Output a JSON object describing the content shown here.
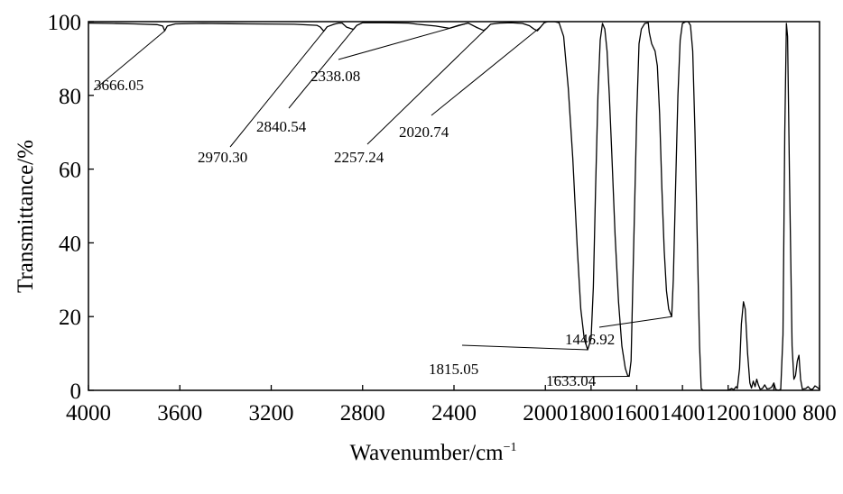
{
  "chart_data": {
    "type": "line",
    "xlabel": "Wavenumber/cm",
    "xlabel_sup": "−1",
    "ylabel": "Transmittance/%",
    "xlim": [
      4000,
      800
    ],
    "ylim": [
      0,
      100
    ],
    "x_reversed": true,
    "grid": false,
    "legend": "none",
    "x_ticks": [
      {
        "value": 4000,
        "label": "4000"
      },
      {
        "value": 3600,
        "label": "3600"
      },
      {
        "value": 3200,
        "label": "3200"
      },
      {
        "value": 2800,
        "label": "2800"
      },
      {
        "value": 2400,
        "label": "2400"
      },
      {
        "value": 2000,
        "label": "2000"
      },
      {
        "value": 1800,
        "label": "1800"
      },
      {
        "value": 1600,
        "label": "1600"
      },
      {
        "value": 1400,
        "label": "1400"
      },
      {
        "value": 1200,
        "label": "1200"
      },
      {
        "value": 1000,
        "label": "1000"
      },
      {
        "value": 800,
        "label": "800"
      }
    ],
    "y_ticks": [
      {
        "value": 0,
        "label": "0"
      },
      {
        "value": 20,
        "label": "20"
      },
      {
        "value": 40,
        "label": "40"
      },
      {
        "value": 60,
        "label": "60"
      },
      {
        "value": 80,
        "label": "80"
      },
      {
        "value": 100,
        "label": "100"
      }
    ],
    "series": [
      {
        "color": "#000000",
        "points": [
          [
            4000,
            99.6
          ],
          [
            3900,
            99.5
          ],
          [
            3800,
            99.4
          ],
          [
            3700,
            99.2
          ],
          [
            3675,
            98.8
          ],
          [
            3666,
            97.5
          ],
          [
            3655,
            98.8
          ],
          [
            3620,
            99.4
          ],
          [
            3500,
            99.5
          ],
          [
            3300,
            99.4
          ],
          [
            3100,
            99.3
          ],
          [
            3000,
            99.0
          ],
          [
            2985,
            98.5
          ],
          [
            2970,
            97.4
          ],
          [
            2955,
            98.6
          ],
          [
            2925,
            99.3
          ],
          [
            2905,
            99.6
          ],
          [
            2890,
            99.6
          ],
          [
            2870,
            98.5
          ],
          [
            2855,
            98.2
          ],
          [
            2840,
            97.9
          ],
          [
            2825,
            99.0
          ],
          [
            2800,
            99.7
          ],
          [
            2700,
            99.7
          ],
          [
            2600,
            99.6
          ],
          [
            2560,
            99.3
          ],
          [
            2480,
            98.8
          ],
          [
            2420,
            98.2
          ],
          [
            2380,
            99.0
          ],
          [
            2338,
            99.6
          ],
          [
            2300,
            98.4
          ],
          [
            2270,
            97.6
          ],
          [
            2257,
            98.2
          ],
          [
            2240,
            99.3
          ],
          [
            2200,
            99.6
          ],
          [
            2150,
            99.7
          ],
          [
            2100,
            99.5
          ],
          [
            2070,
            98.9
          ],
          [
            2050,
            98.0
          ],
          [
            2035,
            97.5
          ],
          [
            2020,
            98.6
          ],
          [
            2005,
            99.7
          ],
          [
            1990,
            100
          ],
          [
            1960,
            100
          ],
          [
            1940,
            99.7
          ],
          [
            1920,
            96
          ],
          [
            1900,
            82
          ],
          [
            1880,
            63
          ],
          [
            1860,
            38
          ],
          [
            1845,
            22
          ],
          [
            1830,
            14
          ],
          [
            1815,
            11
          ],
          [
            1800,
            14
          ],
          [
            1790,
            28
          ],
          [
            1780,
            55
          ],
          [
            1770,
            80
          ],
          [
            1760,
            95
          ],
          [
            1750,
            99.5
          ],
          [
            1740,
            98
          ],
          [
            1730,
            92
          ],
          [
            1720,
            80
          ],
          [
            1710,
            65
          ],
          [
            1695,
            42
          ],
          [
            1680,
            24
          ],
          [
            1665,
            12
          ],
          [
            1650,
            6
          ],
          [
            1640,
            4
          ],
          [
            1633,
            3.8
          ],
          [
            1625,
            8
          ],
          [
            1615,
            35
          ],
          [
            1600,
            75
          ],
          [
            1590,
            94
          ],
          [
            1580,
            98
          ],
          [
            1565,
            99.5
          ],
          [
            1550,
            99.7
          ],
          [
            1545,
            97
          ],
          [
            1535,
            94
          ],
          [
            1520,
            92
          ],
          [
            1510,
            88
          ],
          [
            1500,
            75
          ],
          [
            1490,
            55
          ],
          [
            1480,
            38
          ],
          [
            1470,
            27
          ],
          [
            1460,
            22
          ],
          [
            1447,
            20
          ],
          [
            1440,
            30
          ],
          [
            1430,
            55
          ],
          [
            1420,
            80
          ],
          [
            1410,
            95
          ],
          [
            1400,
            99.5
          ],
          [
            1385,
            100
          ],
          [
            1375,
            100
          ],
          [
            1365,
            99
          ],
          [
            1355,
            92
          ],
          [
            1345,
            70
          ],
          [
            1335,
            40
          ],
          [
            1325,
            12
          ],
          [
            1318,
            0.5
          ],
          [
            1310,
            0
          ],
          [
            1250,
            0
          ],
          [
            1200,
            0
          ],
          [
            1185,
            0.5
          ],
          [
            1175,
            0.2
          ],
          [
            1165,
            1
          ],
          [
            1160,
            0.5
          ],
          [
            1150,
            6
          ],
          [
            1142,
            18
          ],
          [
            1133,
            24
          ],
          [
            1125,
            22
          ],
          [
            1115,
            10
          ],
          [
            1105,
            2
          ],
          [
            1098,
            0.6
          ],
          [
            1090,
            2.5
          ],
          [
            1082,
            1
          ],
          [
            1075,
            3
          ],
          [
            1068,
            1.5
          ],
          [
            1060,
            0.3
          ],
          [
            1050,
            0.5
          ],
          [
            1040,
            1.5
          ],
          [
            1030,
            0.4
          ],
          [
            1020,
            0.5
          ],
          [
            1010,
            0.8
          ],
          [
            1000,
            2
          ],
          [
            992,
            0.3
          ],
          [
            980,
            0
          ],
          [
            970,
            0.3
          ],
          [
            960,
            15
          ],
          [
            952,
            70
          ],
          [
            945,
            99.5
          ],
          [
            940,
            96
          ],
          [
            932,
            60
          ],
          [
            920,
            12
          ],
          [
            912,
            3
          ],
          [
            905,
            4
          ],
          [
            897,
            8
          ],
          [
            890,
            9.5
          ],
          [
            883,
            3
          ],
          [
            875,
            0.3
          ],
          [
            860,
            0.5
          ],
          [
            850,
            1
          ],
          [
            840,
            0.3
          ],
          [
            830,
            0.3
          ],
          [
            820,
            1.2
          ],
          [
            810,
            0.8
          ],
          [
            800,
            0.3
          ]
        ]
      }
    ],
    "annotations": [
      {
        "text": "3666.05",
        "x": 3666,
        "y": 97.5,
        "side": "left"
      },
      {
        "text": "2970.30",
        "x": 2970,
        "y": 97.4,
        "side": "left"
      },
      {
        "text": "2840.54",
        "x": 2840,
        "y": 97.9,
        "side": "right"
      },
      {
        "text": "2338.08",
        "x": 2338,
        "y": 99.6,
        "side": "left"
      },
      {
        "text": "2257.24",
        "x": 2257,
        "y": 98.2,
        "side": "left"
      },
      {
        "text": "2020.74",
        "x": 2020,
        "y": 98.6,
        "side": "right"
      },
      {
        "text": "1815.05",
        "x": 1815,
        "y": 11,
        "side": "left"
      },
      {
        "text": "1633.04",
        "x": 1633,
        "y": 3.8,
        "side": "right"
      },
      {
        "text": "1446.92",
        "x": 1447,
        "y": 20,
        "side": "left"
      }
    ]
  }
}
